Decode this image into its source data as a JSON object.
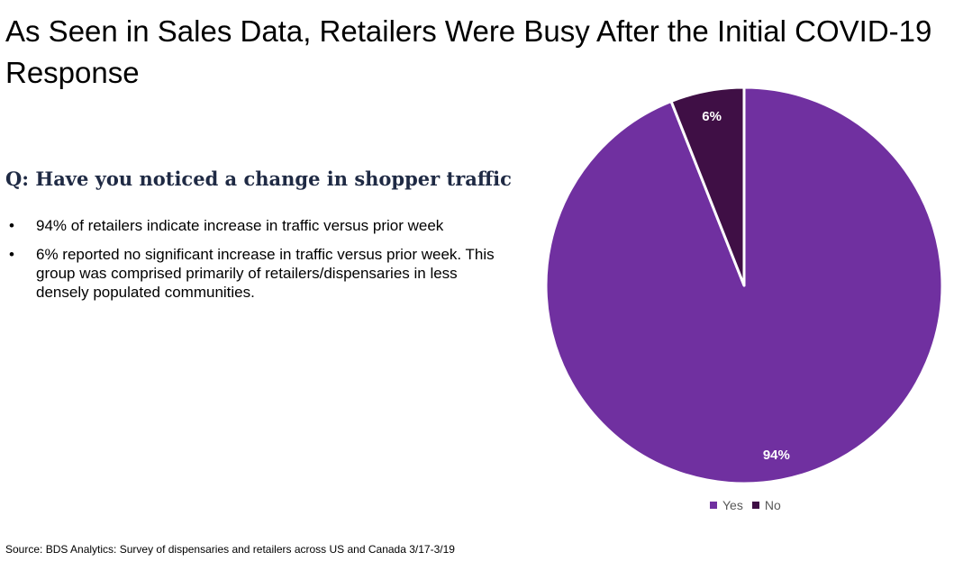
{
  "title": "As Seen in Sales Data, Retailers Were Busy After the Initial COVID-19 Response",
  "question": "Q: Have you noticed a change in shopper traffic",
  "bullets": [
    "94% of retailers indicate increase in traffic versus prior week",
    "6% reported no significant increase in traffic versus prior week. This group was comprised primarily of retailers/dispensaries in less densely populated communities."
  ],
  "bullet_glyph": "•",
  "source": "Source: BDS Analytics: Survey of dispensaries and retailers across US and Canada 3/17-3/19",
  "chart_data": {
    "type": "pie",
    "categories": [
      "Yes",
      "No"
    ],
    "values": [
      94,
      6
    ],
    "data_labels": [
      "94%",
      "6%"
    ],
    "colors": [
      "#7030a0",
      "#3f0f45"
    ],
    "start_angle_deg": 0,
    "direction": "clockwise",
    "legend_position": "bottom"
  }
}
